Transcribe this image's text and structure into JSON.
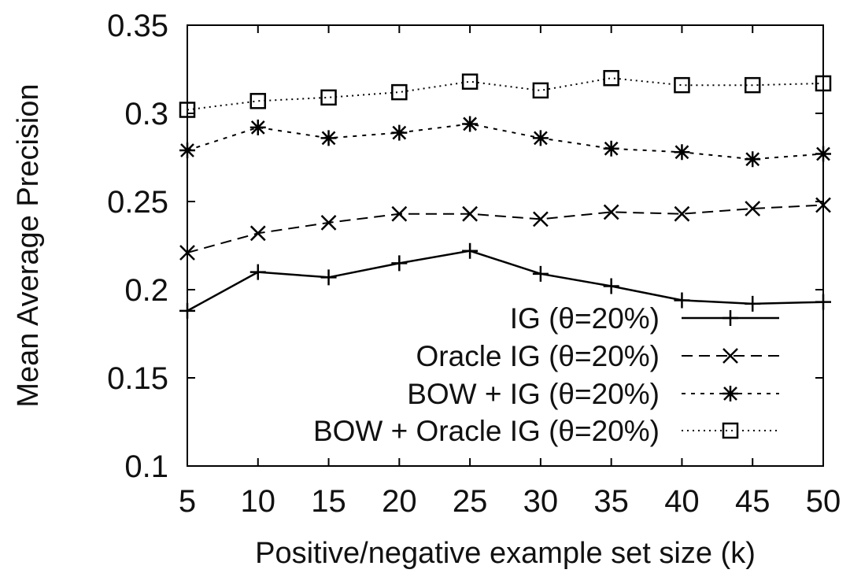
{
  "chart_data": {
    "type": "line",
    "title": "",
    "xlabel": "Positive/negative example set size (k)",
    "ylabel": "Mean Average Precision",
    "x": [
      5,
      10,
      15,
      20,
      25,
      30,
      35,
      40,
      45,
      50
    ],
    "xlim": [
      5,
      50
    ],
    "ylim": [
      0.1,
      0.35
    ],
    "xticks": [
      "5",
      "10",
      "15",
      "20",
      "25",
      "30",
      "35",
      "40",
      "45",
      "50"
    ],
    "yticks": [
      "0.1",
      "0.15",
      "0.2",
      "0.25",
      "0.3",
      "0.35"
    ],
    "grid": false,
    "legend_position": "bottom-right",
    "series": [
      {
        "name": "IG (θ=20%)",
        "marker": "plus",
        "line": "solid",
        "values": [
          0.188,
          0.21,
          0.207,
          0.215,
          0.222,
          0.209,
          0.202,
          0.194,
          0.192,
          0.193
        ]
      },
      {
        "name": "Oracle IG (θ=20%)",
        "marker": "cross",
        "line": "dashed",
        "values": [
          0.221,
          0.232,
          0.238,
          0.243,
          0.243,
          0.24,
          0.244,
          0.243,
          0.246,
          0.248
        ]
      },
      {
        "name": "BOW + IG (θ=20%)",
        "marker": "star",
        "line": "dotted",
        "values": [
          0.279,
          0.292,
          0.286,
          0.289,
          0.294,
          0.286,
          0.28,
          0.278,
          0.274,
          0.277
        ]
      },
      {
        "name": "BOW + Oracle IG (θ=20%)",
        "marker": "square",
        "line": "fine-dotted",
        "values": [
          0.302,
          0.307,
          0.309,
          0.312,
          0.318,
          0.313,
          0.32,
          0.316,
          0.316,
          0.317
        ]
      }
    ]
  }
}
